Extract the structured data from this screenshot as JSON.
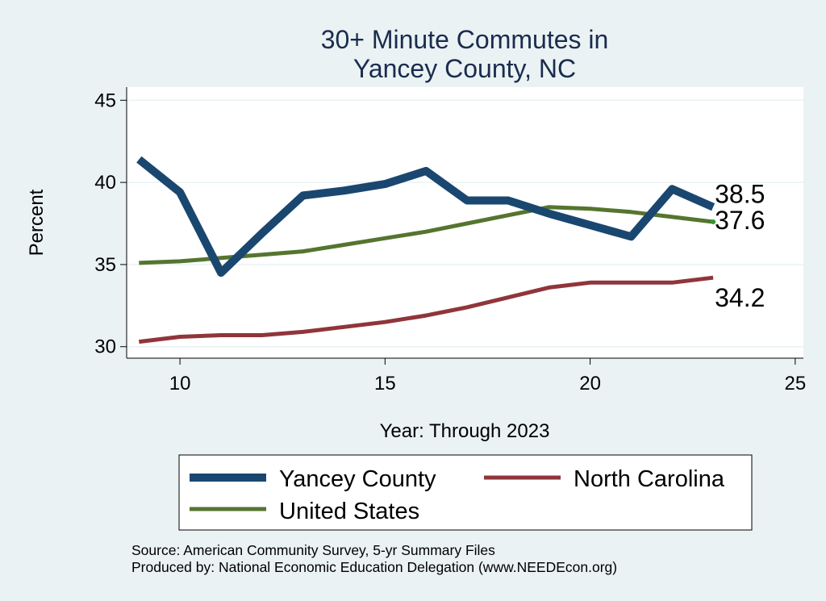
{
  "chart_data": {
    "type": "line",
    "title_lines": [
      "30+ Minute Commutes in",
      "Yancey County, NC"
    ],
    "xlabel": "Year: Through 2023",
    "ylabel": "Percent",
    "xlim": [
      8.7,
      25.2
    ],
    "ylim": [
      29.3,
      45.8
    ],
    "x_ticks": [
      10,
      15,
      20,
      25
    ],
    "y_ticks": [
      30,
      35,
      40,
      45
    ],
    "grid": true,
    "legend_position": "bottom",
    "series": [
      {
        "name": "Yancey County",
        "color": "#1a476f",
        "x": [
          9,
          10,
          11,
          12,
          13,
          14,
          15,
          16,
          17,
          18,
          19,
          20,
          21,
          22,
          23
        ],
        "values": [
          41.4,
          39.4,
          34.5,
          36.9,
          39.2,
          39.5,
          39.9,
          40.7,
          38.9,
          38.9,
          38.1,
          37.4,
          36.7,
          39.6,
          38.5
        ],
        "end_label": "38.5"
      },
      {
        "name": "North Carolina",
        "color": "#90353b",
        "x": [
          9,
          10,
          11,
          12,
          13,
          14,
          15,
          16,
          17,
          18,
          19,
          20,
          21,
          22,
          23
        ],
        "values": [
          30.3,
          30.6,
          30.7,
          30.7,
          30.9,
          31.2,
          31.5,
          31.9,
          32.4,
          33.0,
          33.6,
          33.9,
          33.9,
          33.9,
          34.2
        ],
        "end_label": "34.2"
      },
      {
        "name": "United States",
        "color": "#55752f",
        "x": [
          9,
          10,
          11,
          12,
          13,
          14,
          15,
          16,
          17,
          18,
          19,
          20,
          21,
          22,
          23
        ],
        "values": [
          35.1,
          35.2,
          35.4,
          35.6,
          35.8,
          36.2,
          36.6,
          37.0,
          37.5,
          38.0,
          38.5,
          38.4,
          38.2,
          37.9,
          37.6
        ],
        "end_label": "37.6"
      }
    ]
  },
  "notes": {
    "source": "Source: American Community Survey, 5-yr Summary Files",
    "produced_by": "Produced by: National Economic Education Delegation (www.NEEDEcon.org)"
  }
}
